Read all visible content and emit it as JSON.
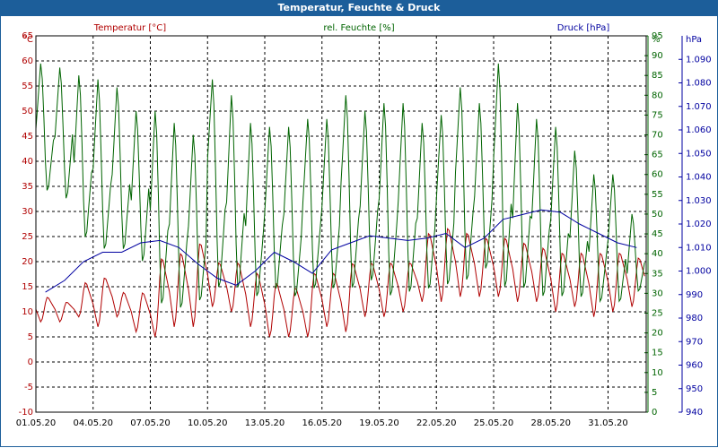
{
  "window": {
    "title": "Temperatur, Feuchte & Druck"
  },
  "colors": {
    "temperature": "#b00000",
    "humidity": "#006400",
    "pressure": "#0000a0",
    "grid": "#000000"
  },
  "chart_data": {
    "type": "line",
    "title": "Temperatur, Feuchte & Druck",
    "grid": true,
    "x": {
      "label": "",
      "range": [
        "01.05.20",
        "02.06.20"
      ],
      "ticks": [
        "01.05.20",
        "04.05.20",
        "07.05.20",
        "10.05.20",
        "13.05.20",
        "16.05.20",
        "19.05.20",
        "22.05.20",
        "25.05.20",
        "28.05.20",
        "31.05.20"
      ]
    },
    "axes": {
      "temperature": {
        "unit": "°C",
        "range": [
          -10,
          65
        ],
        "ticks": [
          "65",
          "60",
          "55",
          "50",
          "45",
          "40",
          "35",
          "30",
          "25",
          "20",
          "15",
          "10",
          "5",
          "0",
          "-5",
          "-10"
        ]
      },
      "humidity": {
        "unit": "%",
        "range": [
          0,
          95
        ],
        "ticks": [
          "95",
          "90",
          "85",
          "80",
          "75",
          "70",
          "65",
          "60",
          "55",
          "50",
          "45",
          "40",
          "35",
          "30",
          "25",
          "20",
          "15",
          "10",
          "5",
          "0"
        ]
      },
      "pressure": {
        "unit": "hPa",
        "range": [
          940,
          1100
        ],
        "ticks": [
          "1.090",
          "1.080",
          "1.070",
          "1.060",
          "1.050",
          "1.040",
          "1.030",
          "1.020",
          "1.010",
          "1.000",
          "990",
          "980",
          "970",
          "960",
          "950",
          "940"
        ]
      }
    },
    "legend": {
      "temperature": "Temperatur [°C]",
      "humidity": "rel. Feuchte [%]",
      "pressure": "Druck [hPa]"
    },
    "series": [
      {
        "key": "temperature",
        "name": "Temperatur [°C]",
        "axis": "temperature",
        "x": [
          "2020-05-01",
          "2020-05-02",
          "2020-05-03",
          "2020-05-04",
          "2020-05-05",
          "2020-05-06",
          "2020-05-07",
          "2020-05-08",
          "2020-05-09",
          "2020-05-10",
          "2020-05-11",
          "2020-05-12",
          "2020-05-13",
          "2020-05-14",
          "2020-05-15",
          "2020-05-16",
          "2020-05-17",
          "2020-05-18",
          "2020-05-19",
          "2020-05-20",
          "2020-05-21",
          "2020-05-22",
          "2020-05-23",
          "2020-05-24",
          "2020-05-25",
          "2020-05-26",
          "2020-05-27",
          "2020-05-28",
          "2020-05-29",
          "2020-05-30",
          "2020-05-31",
          "2020-06-01"
        ],
        "max": [
          13,
          12,
          16,
          17,
          14,
          14,
          21,
          22,
          24,
          20,
          20,
          18,
          16,
          15,
          18,
          18,
          20,
          20,
          20,
          20,
          26,
          27,
          26,
          25,
          25,
          24,
          23,
          22,
          22,
          22,
          22,
          21
        ],
        "min": [
          8,
          8,
          9,
          7,
          9,
          6,
          5,
          7,
          7,
          11,
          10,
          7,
          5,
          5,
          5,
          7,
          6,
          9,
          9,
          10,
          12,
          12,
          13,
          13,
          13,
          12,
          12,
          10,
          11,
          9,
          10,
          11
        ]
      },
      {
        "key": "humidity",
        "name": "rel. Feuchte [%]",
        "axis": "humidity",
        "x": [
          "2020-05-01",
          "2020-05-02",
          "2020-05-03",
          "2020-05-04",
          "2020-05-05",
          "2020-05-06",
          "2020-05-07",
          "2020-05-08",
          "2020-05-09",
          "2020-05-10",
          "2020-05-11",
          "2020-05-12",
          "2020-05-13",
          "2020-05-14",
          "2020-05-15",
          "2020-05-16",
          "2020-05-17",
          "2020-05-18",
          "2020-05-19",
          "2020-05-20",
          "2020-05-21",
          "2020-05-22",
          "2020-05-23",
          "2020-05-24",
          "2020-05-25",
          "2020-05-26",
          "2020-05-27",
          "2020-05-28",
          "2020-05-29",
          "2020-05-30",
          "2020-05-31",
          "2020-06-01"
        ],
        "max": [
          88,
          87,
          85,
          84,
          82,
          76,
          76,
          73,
          70,
          84,
          80,
          73,
          72,
          72,
          74,
          74,
          80,
          76,
          78,
          78,
          73,
          75,
          82,
          78,
          88,
          78,
          74,
          72,
          66,
          60,
          60,
          50
        ],
        "min": [
          55,
          53,
          43,
          40,
          40,
          37,
          26,
          25,
          27,
          30,
          30,
          28,
          30,
          28,
          30,
          30,
          30,
          32,
          28,
          29,
          30,
          31,
          32,
          35,
          30,
          30,
          28,
          28,
          28,
          27,
          27,
          30
        ]
      },
      {
        "key": "pressure",
        "name": "Druck [hPa]",
        "axis": "pressure",
        "x": [
          "2020-05-01",
          "2020-05-02",
          "2020-05-03",
          "2020-05-04",
          "2020-05-05",
          "2020-05-06",
          "2020-05-07",
          "2020-05-08",
          "2020-05-09",
          "2020-05-10",
          "2020-05-11",
          "2020-05-12",
          "2020-05-13",
          "2020-05-14",
          "2020-05-15",
          "2020-05-16",
          "2020-05-17",
          "2020-05-18",
          "2020-05-19",
          "2020-05-20",
          "2020-05-21",
          "2020-05-22",
          "2020-05-23",
          "2020-05-24",
          "2020-05-25",
          "2020-05-26",
          "2020-05-27",
          "2020-05-28",
          "2020-05-29",
          "2020-05-30",
          "2020-05-31",
          "2020-06-01"
        ],
        "values": [
          991,
          996,
          1004,
          1008,
          1008,
          1012,
          1013,
          1010,
          1003,
          997,
          994,
          1000,
          1008,
          1004,
          999,
          1009,
          1012,
          1015,
          1014,
          1013,
          1014,
          1016,
          1010,
          1014,
          1022,
          1024,
          1026,
          1025,
          1020,
          1016,
          1012,
          1010
        ]
      }
    ]
  }
}
